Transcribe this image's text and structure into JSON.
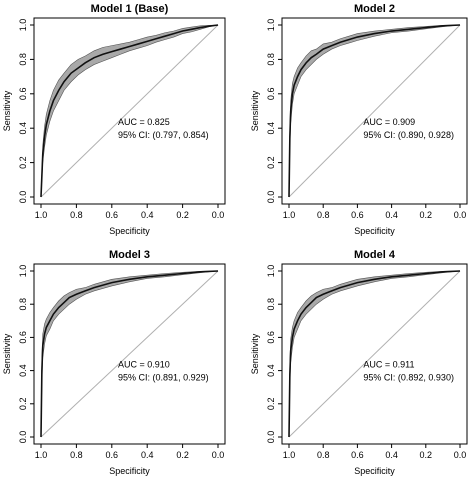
{
  "figure": {
    "x_label": "Specificity",
    "y_label": "Sensitivity"
  },
  "chart_data": [
    {
      "type": "line",
      "title": "Model 1 (Base)",
      "xlabel": "Specificity",
      "ylabel": "Sensitivity",
      "xlim": [
        1.0,
        0.0
      ],
      "ylim": [
        0.0,
        1.0
      ],
      "x_ticks": [
        "1.0",
        "0.8",
        "0.6",
        "0.4",
        "0.2",
        "0.0"
      ],
      "y_ticks": [
        "0.0",
        "0.2",
        "0.4",
        "0.6",
        "0.8",
        "1.0"
      ],
      "annotation": [
        "AUC = 0.825",
        "95% CI: (0.797, 0.854)"
      ],
      "colors": {
        "curve": "#111111",
        "band": "#9a9a9a",
        "reference": "#b0b0b0"
      },
      "series": [
        {
          "values_x": [
            1.0,
            0.99,
            0.98,
            0.97,
            0.95,
            0.93,
            0.9,
            0.87,
            0.83,
            0.79,
            0.75,
            0.7,
            0.65,
            0.6,
            0.55,
            0.5,
            0.45,
            0.4,
            0.35,
            0.3,
            0.25,
            0.2,
            0.15,
            0.1,
            0.05,
            0.0
          ],
          "sensitivity": [
            0.0,
            0.25,
            0.35,
            0.42,
            0.5,
            0.56,
            0.62,
            0.67,
            0.72,
            0.75,
            0.78,
            0.81,
            0.83,
            0.845,
            0.86,
            0.875,
            0.89,
            0.905,
            0.92,
            0.935,
            0.95,
            0.965,
            0.975,
            0.985,
            0.993,
            1.0
          ],
          "lower": [
            0.0,
            0.2,
            0.29,
            0.36,
            0.44,
            0.5,
            0.56,
            0.62,
            0.67,
            0.71,
            0.74,
            0.77,
            0.79,
            0.81,
            0.83,
            0.85,
            0.865,
            0.88,
            0.9,
            0.915,
            0.93,
            0.95,
            0.96,
            0.975,
            0.99,
            1.0
          ],
          "upper": [
            0.0,
            0.3,
            0.41,
            0.48,
            0.56,
            0.62,
            0.68,
            0.72,
            0.77,
            0.8,
            0.82,
            0.85,
            0.87,
            0.88,
            0.89,
            0.9,
            0.915,
            0.93,
            0.94,
            0.955,
            0.965,
            0.98,
            0.988,
            0.995,
            0.998,
            1.0
          ]
        }
      ]
    },
    {
      "type": "line",
      "title": "Model 2",
      "xlabel": "Specificity",
      "ylabel": "Sensitivity",
      "xlim": [
        1.0,
        0.0
      ],
      "ylim": [
        0.0,
        1.0
      ],
      "x_ticks": [
        "1.0",
        "0.8",
        "0.6",
        "0.4",
        "0.2",
        "0.0"
      ],
      "y_ticks": [
        "0.0",
        "0.2",
        "0.4",
        "0.6",
        "0.8",
        "1.0"
      ],
      "annotation": [
        "AUC = 0.909",
        "95% CI: (0.890, 0.928)"
      ],
      "colors": {
        "curve": "#111111",
        "band": "#9a9a9a",
        "reference": "#b0b0b0"
      },
      "series": [
        {
          "values_x": [
            1.0,
            0.995,
            0.99,
            0.98,
            0.97,
            0.95,
            0.93,
            0.9,
            0.87,
            0.84,
            0.8,
            0.75,
            0.7,
            0.65,
            0.6,
            0.5,
            0.4,
            0.3,
            0.2,
            0.1,
            0.0
          ],
          "sensitivity": [
            0.0,
            0.35,
            0.5,
            0.6,
            0.65,
            0.7,
            0.74,
            0.78,
            0.81,
            0.83,
            0.86,
            0.88,
            0.9,
            0.915,
            0.93,
            0.95,
            0.965,
            0.975,
            0.985,
            0.995,
            1.0
          ],
          "lower": [
            0.0,
            0.28,
            0.43,
            0.54,
            0.6,
            0.65,
            0.7,
            0.74,
            0.77,
            0.8,
            0.83,
            0.86,
            0.88,
            0.895,
            0.91,
            0.935,
            0.955,
            0.965,
            0.978,
            0.99,
            1.0
          ],
          "upper": [
            0.0,
            0.42,
            0.56,
            0.66,
            0.7,
            0.75,
            0.78,
            0.82,
            0.85,
            0.86,
            0.89,
            0.9,
            0.92,
            0.935,
            0.95,
            0.965,
            0.975,
            0.985,
            0.992,
            0.998,
            1.0
          ]
        }
      ]
    },
    {
      "type": "line",
      "title": "Model 3",
      "xlabel": "Specificity",
      "ylabel": "Sensitivity",
      "xlim": [
        1.0,
        0.0
      ],
      "ylim": [
        0.0,
        1.0
      ],
      "x_ticks": [
        "1.0",
        "0.8",
        "0.6",
        "0.4",
        "0.2",
        "0.0"
      ],
      "y_ticks": [
        "0.0",
        "0.2",
        "0.4",
        "0.6",
        "0.8",
        "1.0"
      ],
      "annotation": [
        "AUC = 0.910",
        "95% CI: (0.891, 0.929)"
      ],
      "colors": {
        "curve": "#111111",
        "band": "#9a9a9a",
        "reference": "#b0b0b0"
      },
      "series": [
        {
          "values_x": [
            1.0,
            0.995,
            0.99,
            0.98,
            0.97,
            0.95,
            0.93,
            0.9,
            0.87,
            0.84,
            0.8,
            0.75,
            0.7,
            0.65,
            0.6,
            0.5,
            0.4,
            0.3,
            0.2,
            0.1,
            0.0
          ],
          "sensitivity": [
            0.0,
            0.4,
            0.55,
            0.62,
            0.66,
            0.7,
            0.74,
            0.78,
            0.81,
            0.84,
            0.86,
            0.88,
            0.9,
            0.915,
            0.93,
            0.95,
            0.965,
            0.975,
            0.985,
            0.995,
            1.0
          ],
          "lower": [
            0.0,
            0.32,
            0.48,
            0.56,
            0.61,
            0.65,
            0.7,
            0.74,
            0.77,
            0.8,
            0.83,
            0.86,
            0.88,
            0.895,
            0.91,
            0.935,
            0.955,
            0.965,
            0.978,
            0.99,
            1.0
          ],
          "upper": [
            0.0,
            0.48,
            0.62,
            0.68,
            0.71,
            0.75,
            0.78,
            0.82,
            0.85,
            0.87,
            0.89,
            0.9,
            0.92,
            0.935,
            0.95,
            0.965,
            0.975,
            0.985,
            0.992,
            0.998,
            1.0
          ]
        }
      ]
    },
    {
      "type": "line",
      "title": "Model 4",
      "xlabel": "Specificity",
      "ylabel": "Sensitivity",
      "xlim": [
        1.0,
        0.0
      ],
      "ylim": [
        0.0,
        1.0
      ],
      "x_ticks": [
        "1.0",
        "0.8",
        "0.6",
        "0.4",
        "0.2",
        "0.0"
      ],
      "y_ticks": [
        "0.0",
        "0.2",
        "0.4",
        "0.6",
        "0.8",
        "1.0"
      ],
      "annotation": [
        "AUC = 0.911",
        "95% CI: (0.892, 0.930)"
      ],
      "colors": {
        "curve": "#111111",
        "band": "#9a9a9a",
        "reference": "#b0b0b0"
      },
      "series": [
        {
          "values_x": [
            1.0,
            0.995,
            0.99,
            0.98,
            0.97,
            0.95,
            0.93,
            0.9,
            0.87,
            0.84,
            0.8,
            0.75,
            0.7,
            0.65,
            0.6,
            0.5,
            0.4,
            0.3,
            0.2,
            0.1,
            0.0
          ],
          "sensitivity": [
            0.0,
            0.38,
            0.52,
            0.6,
            0.65,
            0.7,
            0.74,
            0.78,
            0.81,
            0.84,
            0.86,
            0.88,
            0.9,
            0.915,
            0.93,
            0.95,
            0.965,
            0.975,
            0.985,
            0.995,
            1.0
          ],
          "lower": [
            0.0,
            0.3,
            0.45,
            0.54,
            0.6,
            0.65,
            0.7,
            0.74,
            0.77,
            0.8,
            0.83,
            0.86,
            0.88,
            0.895,
            0.91,
            0.935,
            0.955,
            0.965,
            0.978,
            0.99,
            1.0
          ],
          "upper": [
            0.0,
            0.46,
            0.59,
            0.66,
            0.7,
            0.75,
            0.78,
            0.82,
            0.85,
            0.87,
            0.89,
            0.9,
            0.92,
            0.935,
            0.95,
            0.965,
            0.975,
            0.985,
            0.992,
            0.998,
            1.0
          ]
        }
      ]
    }
  ]
}
